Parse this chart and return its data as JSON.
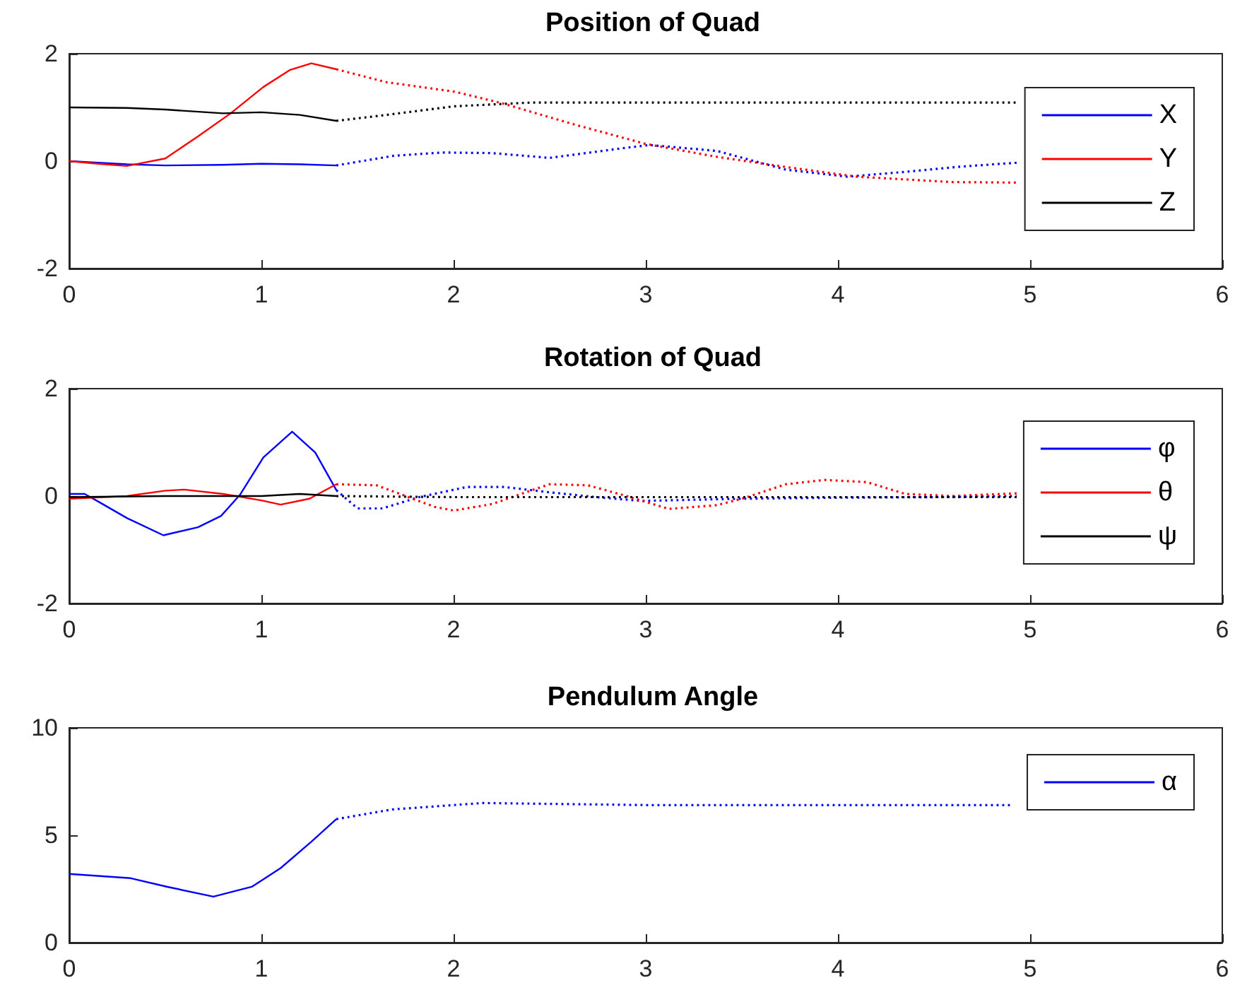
{
  "chart_data": [
    {
      "type": "line",
      "title": "Position of Quad",
      "xlim": [
        0,
        6
      ],
      "xticks": [
        0,
        1,
        2,
        3,
        4,
        5,
        6
      ],
      "ylim": [
        -2,
        2
      ],
      "yticks": [
        -2,
        0,
        2
      ],
      "grid": false,
      "legend": "right",
      "marker": "none",
      "series": [
        {
          "name": "X",
          "color": "#0000ff",
          "line_style": "solid",
          "x": [
            0,
            0.3,
            0.5,
            0.8,
            1.0,
            1.2,
            1.39
          ],
          "values": [
            0,
            -0.06,
            -0.08,
            -0.07,
            -0.05,
            -0.06,
            -0.08
          ]
        },
        {
          "name": "Y",
          "color": "#ff0000",
          "line_style": "solid",
          "x": [
            0,
            0.15,
            0.3,
            0.5,
            0.67,
            0.84,
            1.01,
            1.15,
            1.26,
            1.39
          ],
          "values": [
            0,
            -0.05,
            -0.09,
            0.05,
            0.46,
            0.89,
            1.38,
            1.7,
            1.82,
            1.71
          ]
        },
        {
          "name": "Z",
          "color": "#000000",
          "line_style": "solid",
          "x": [
            0,
            0.3,
            0.5,
            0.8,
            1.0,
            1.2,
            1.39
          ],
          "values": [
            1.0,
            0.99,
            0.96,
            0.89,
            0.91,
            0.86,
            0.75
          ]
        },
        {
          "color": "#0000ff",
          "line_style": "dotted",
          "x": [
            1.39,
            1.69,
            1.94,
            2.2,
            2.5,
            2.88,
            3.02,
            3.37,
            3.73,
            4.05,
            4.35,
            4.65,
            4.93
          ],
          "values": [
            -0.08,
            0.1,
            0.16,
            0.15,
            0.06,
            0.24,
            0.3,
            0.19,
            -0.16,
            -0.29,
            -0.2,
            -0.1,
            -0.03
          ]
        },
        {
          "color": "#ff0000",
          "line_style": "dotted",
          "x": [
            1.39,
            1.65,
            2.01,
            2.26,
            2.63,
            3.0,
            3.37,
            3.73,
            4.1,
            4.59,
            4.93
          ],
          "values": [
            1.71,
            1.47,
            1.29,
            1.07,
            0.68,
            0.32,
            0.08,
            -0.11,
            -0.29,
            -0.39,
            -0.4
          ]
        },
        {
          "color": "#000000",
          "line_style": "dotted",
          "x": [
            1.39,
            1.65,
            2.0,
            2.4,
            3.0,
            4.0,
            4.93
          ],
          "values": [
            0.75,
            0.86,
            1.02,
            1.09,
            1.09,
            1.09,
            1.09
          ]
        }
      ]
    },
    {
      "type": "line",
      "title": "Rotation of Quad",
      "xlim": [
        0,
        6
      ],
      "xticks": [
        0,
        1,
        2,
        3,
        4,
        5,
        6
      ],
      "ylim": [
        -2,
        2
      ],
      "yticks": [
        -2,
        0,
        2
      ],
      "grid": false,
      "legend": "right",
      "marker": "none",
      "series": [
        {
          "name": "φ",
          "color": "#0000ff",
          "line_style": "solid",
          "x": [
            0,
            0.08,
            0.15,
            0.3,
            0.49,
            0.67,
            0.79,
            0.89,
            1.01,
            1.16,
            1.28,
            1.39
          ],
          "values": [
            0.04,
            0.04,
            -0.1,
            -0.41,
            -0.73,
            -0.58,
            -0.37,
            0.03,
            0.72,
            1.2,
            0.81,
            0.11
          ]
        },
        {
          "name": "θ",
          "color": "#ff0000",
          "line_style": "solid",
          "x": [
            0,
            0.3,
            0.5,
            0.6,
            0.8,
            1.0,
            1.1,
            1.25,
            1.39
          ],
          "values": [
            -0.05,
            0.0,
            0.1,
            0.12,
            0.04,
            -0.08,
            -0.16,
            -0.05,
            0.22
          ]
        },
        {
          "name": "ψ",
          "color": "#000000",
          "line_style": "solid",
          "x": [
            0,
            0.5,
            1.0,
            1.2,
            1.39
          ],
          "values": [
            -0.02,
            0.0,
            0.0,
            0.04,
            0.0
          ]
        },
        {
          "color": "#0000ff",
          "line_style": "dotted",
          "x": [
            1.39,
            1.5,
            1.63,
            1.82,
            2.07,
            2.26,
            2.5,
            2.74,
            2.98,
            3.5,
            4.0,
            4.5,
            4.93
          ],
          "values": [
            0.11,
            -0.23,
            -0.23,
            -0.02,
            0.17,
            0.17,
            0.07,
            -0.02,
            -0.09,
            -0.05,
            -0.03,
            -0.02,
            0.0
          ]
        },
        {
          "color": "#ff0000",
          "line_style": "dotted",
          "x": [
            1.39,
            1.6,
            1.75,
            1.9,
            2.0,
            2.2,
            2.4,
            2.5,
            2.7,
            2.9,
            3.12,
            3.37,
            3.51,
            3.73,
            3.93,
            4.15,
            4.35,
            4.59,
            4.93
          ],
          "values": [
            0.22,
            0.2,
            0.0,
            -0.2,
            -0.27,
            -0.15,
            0.1,
            0.22,
            0.2,
            0.0,
            -0.24,
            -0.17,
            -0.04,
            0.22,
            0.3,
            0.26,
            0.04,
            0.0,
            0.05
          ]
        },
        {
          "color": "#000000",
          "line_style": "dotted",
          "x": [
            1.39,
            2.0,
            3.0,
            4.0,
            4.93
          ],
          "values": [
            0.0,
            -0.02,
            -0.02,
            -0.02,
            -0.02
          ]
        }
      ]
    },
    {
      "type": "line",
      "title": "Pendulum Angle",
      "xlim": [
        0,
        6
      ],
      "xticks": [
        0,
        1,
        2,
        3,
        4,
        5,
        6
      ],
      "ylim": [
        0,
        10
      ],
      "yticks": [
        0,
        5,
        10
      ],
      "grid": false,
      "legend": "right",
      "marker": "none",
      "series": [
        {
          "name": "α",
          "color": "#0000ff",
          "line_style": "solid",
          "x": [
            0,
            0.32,
            0.51,
            0.75,
            0.95,
            1.1,
            1.26,
            1.39
          ],
          "values": [
            3.2,
            3.0,
            2.6,
            2.14,
            2.6,
            3.47,
            4.7,
            5.75
          ]
        },
        {
          "color": "#0000ff",
          "line_style": "dotted",
          "x": [
            1.39,
            1.68,
            2.15,
            3.04,
            4.0,
            4.9
          ],
          "values": [
            5.75,
            6.2,
            6.5,
            6.4,
            6.4,
            6.4
          ]
        }
      ]
    }
  ]
}
